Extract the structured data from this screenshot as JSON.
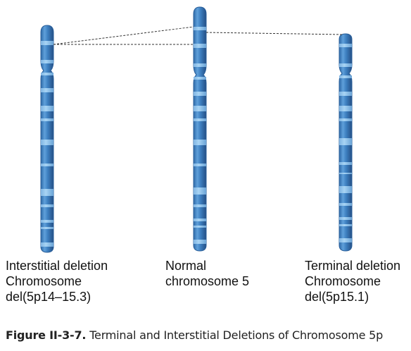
{
  "chromosomes": [
    {
      "id": "interstitial",
      "label_lines": [
        "Interstitial deletion",
        "Chromosome",
        "del(5p14–15.3)"
      ]
    },
    {
      "id": "normal",
      "label_lines": [
        "Normal",
        "chromosome 5"
      ]
    },
    {
      "id": "terminal",
      "label_lines": [
        "Terminal deletion",
        "Chromosome",
        "del(5p15.1)"
      ]
    }
  ],
  "caption": {
    "number": "Figure II-3-7.",
    "text": "Terminal and Interstitial Deletions of Chromosome 5p"
  },
  "colors": {
    "chromosome_body": "#3d7fc0",
    "chromosome_light": "#7fb8e6",
    "chromosome_dark": "#2a5f9a",
    "band": "#8ec4ee",
    "dashed_line": "#333333"
  }
}
